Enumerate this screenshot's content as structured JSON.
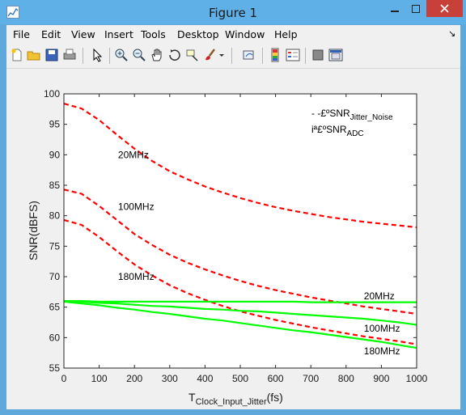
{
  "window": {
    "title": "Figure 1",
    "controls": [
      "minimize",
      "maximize",
      "close"
    ]
  },
  "menu": [
    "File",
    "Edit",
    "View",
    "Insert",
    "Tools",
    "Desktop",
    "Window",
    "Help"
  ],
  "menu_arrow": "↘",
  "toolbar_icons": [
    "new-figure-icon",
    "open-file-icon",
    "save-icon",
    "print-icon",
    "pointer-icon",
    "zoom-in-icon",
    "zoom-out-icon",
    "pan-icon",
    "rotate-3d-icon",
    "data-cursor-icon",
    "brush-icon",
    "brush-dropdown-icon",
    "link-plot-icon",
    "insert-colorbar-icon",
    "insert-legend-icon",
    "hide-plot-tools-icon",
    "show-plot-tools-icon"
  ],
  "chart_data": {
    "type": "line",
    "title": "",
    "xlabel": "T",
    "xlabel_sub": "Clock_Input_Jitter",
    "xlabel_suffix": "(fs)",
    "ylabel": "SNR(dBFS)",
    "xlim": [
      0,
      1000
    ],
    "ylim": [
      55,
      100
    ],
    "x_ticks": [
      "0",
      "100",
      "200",
      "300",
      "400",
      "500",
      "600",
      "700",
      "800",
      "900",
      "1000"
    ],
    "y_ticks": [
      "55",
      "60",
      "65",
      "70",
      "75",
      "80",
      "85",
      "90",
      "95",
      "100"
    ],
    "grid": false,
    "legend": {
      "placement": "top-right",
      "entries": [
        {
          "prefix": "- -£ºSNR",
          "sub": "Jitter_Noise"
        },
        {
          "prefix": "iª£ºSNR",
          "sub": "ADC"
        }
      ]
    },
    "x": [
      0,
      50,
      100,
      150,
      200,
      250,
      300,
      350,
      400,
      450,
      500,
      550,
      600,
      650,
      700,
      750,
      800,
      850,
      900,
      950,
      1000
    ],
    "series": [
      {
        "style": "dashed",
        "color": "#ff0000",
        "values": [
          98.4,
          97.6,
          95.7,
          93.3,
          91.0,
          89.0,
          87.3,
          86.0,
          84.8,
          83.8,
          82.9,
          82.1,
          81.4,
          80.8,
          80.3,
          79.8,
          79.4,
          79.0,
          78.7,
          78.4,
          78.1
        ]
      },
      {
        "style": "dashed",
        "color": "#ff0000",
        "values": [
          84.3,
          83.6,
          81.6,
          79.3,
          77.0,
          75.2,
          73.6,
          72.3,
          71.2,
          70.2,
          69.3,
          68.5,
          67.8,
          67.2,
          66.6,
          66.1,
          65.6,
          65.1,
          64.7,
          64.3,
          63.9
        ]
      },
      {
        "style": "dashed",
        "color": "#ff0000",
        "values": [
          79.3,
          78.5,
          76.5,
          74.2,
          72.0,
          70.2,
          68.6,
          67.3,
          66.2,
          65.2,
          64.3,
          63.6,
          62.9,
          62.3,
          61.7,
          61.2,
          60.7,
          60.2,
          59.8,
          59.4,
          58.9
        ]
      },
      {
        "style": "solid",
        "color": "#00ff00",
        "values": [
          66.0,
          66.0,
          65.9,
          65.9,
          65.9,
          65.9,
          65.9,
          65.9,
          65.9,
          65.9,
          65.9,
          65.9,
          65.9,
          65.9,
          65.8,
          65.8,
          65.8,
          65.8,
          65.8,
          65.8,
          65.8
        ]
      },
      {
        "style": "solid",
        "color": "#00ff00",
        "values": [
          66.0,
          65.9,
          65.7,
          65.6,
          65.4,
          65.2,
          65.1,
          64.9,
          64.7,
          64.6,
          64.4,
          64.3,
          64.1,
          63.9,
          63.7,
          63.5,
          63.3,
          63.1,
          62.8,
          62.5,
          62.1
        ]
      },
      {
        "style": "solid",
        "color": "#00ff00",
        "values": [
          65.9,
          65.6,
          65.3,
          64.9,
          64.6,
          64.2,
          63.9,
          63.5,
          63.1,
          62.8,
          62.4,
          62.0,
          61.6,
          61.2,
          60.9,
          60.5,
          60.1,
          59.7,
          59.3,
          58.8,
          58.3
        ]
      }
    ],
    "annotations": [
      {
        "text": "20MHz",
        "x": 103,
        "y": 90
      },
      {
        "text": "100MHz",
        "x": 103,
        "y": 81.5
      },
      {
        "text": "180MHz",
        "x": 103,
        "y": 70
      },
      {
        "text": "20MHz",
        "x": 800,
        "y": 66.8
      },
      {
        "text": "100MHz",
        "x": 800,
        "y": 61.5
      },
      {
        "text": "180MHz",
        "x": 800,
        "y": 57.8
      }
    ]
  }
}
